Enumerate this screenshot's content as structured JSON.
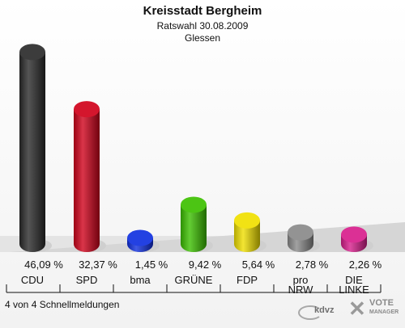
{
  "header": {
    "title": "Kreisstadt Bergheim",
    "subtitle": "Ratswahl 30.08.2009",
    "subtitle2": "Glessen"
  },
  "footer": {
    "status": "4 von 4 Schnellmeldungen"
  },
  "logos": {
    "kdvz_text": "kdvz",
    "votemanager_line1": "VOTE",
    "votemanager_line2": "MANAGER"
  },
  "chart_data": {
    "type": "bar",
    "title": "Kreisstadt Bergheim",
    "categories": [
      "CDU",
      "SPD",
      "bma",
      "GRÜNE",
      "FDP",
      "pro NRW",
      "DIE LINKE"
    ],
    "category_lines": [
      [
        "CDU"
      ],
      [
        "SPD"
      ],
      [
        "bma"
      ],
      [
        "GRÜNE"
      ],
      [
        "FDP"
      ],
      [
        "pro",
        "NRW"
      ],
      [
        "DIE",
        "LINKE"
      ]
    ],
    "values": [
      46.09,
      32.37,
      1.45,
      9.42,
      5.64,
      2.78,
      2.26
    ],
    "value_labels": [
      "46,09 %",
      "32,37 %",
      "1,45 %",
      "9,42 %",
      "5,64 %",
      "2,78 %",
      "2,26 %"
    ],
    "colors": [
      "#2b2b2b",
      "#d0021b",
      "#1030e0",
      "#3cc000",
      "#f0e000",
      "#8a8a8a",
      "#d81e8c"
    ],
    "unit": "%",
    "grid": false,
    "legend": "none"
  }
}
